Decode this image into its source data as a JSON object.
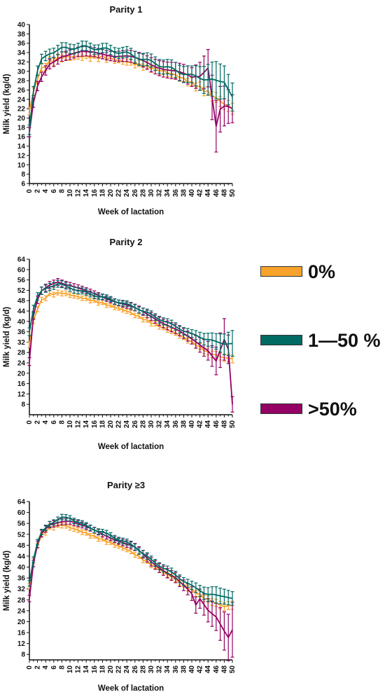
{
  "legend": {
    "items": [
      {
        "label": "0%",
        "color": "#F7A22A"
      },
      {
        "label": "1—50 %",
        "color": "#006B63"
      },
      {
        "label": ">50%",
        "color": "#940064"
      }
    ]
  },
  "chart_data": [
    {
      "type": "line",
      "title": "Parity 1",
      "xlabel": "Week of lactation",
      "ylabel": "Milk yield (kg/d)",
      "xlim": [
        0,
        50
      ],
      "ylim": [
        6,
        40
      ],
      "yticks": [
        6,
        8,
        10,
        12,
        14,
        16,
        18,
        20,
        22,
        24,
        26,
        28,
        30,
        32,
        34,
        36,
        38,
        40
      ],
      "xticks": [
        0,
        2,
        4,
        6,
        8,
        10,
        12,
        14,
        16,
        18,
        20,
        22,
        24,
        26,
        28,
        30,
        32,
        34,
        36,
        38,
        40,
        42,
        44,
        46,
        48,
        50
      ],
      "grid": false,
      "error_bars": true,
      "series": [
        {
          "name": "0%",
          "color": "#F7A22A",
          "anchors": [
            [
              0,
              21.5
            ],
            [
              1,
              25.5
            ],
            [
              2,
              28.5
            ],
            [
              3,
              30.5
            ],
            [
              5,
              32
            ],
            [
              8,
              33
            ],
            [
              12,
              33.2
            ],
            [
              18,
              33
            ],
            [
              24,
              32
            ],
            [
              30,
              30.8
            ],
            [
              36,
              29.2
            ],
            [
              40,
              27.5
            ],
            [
              44,
              25.5
            ],
            [
              48,
              23
            ],
            [
              50,
              22
            ]
          ],
          "err_anchors": [
            [
              0,
              0.8
            ],
            [
              20,
              0.6
            ],
            [
              40,
              0.8
            ],
            [
              50,
              1.2
            ]
          ]
        },
        {
          "name": "1—50 %",
          "color": "#006B63",
          "anchors": [
            [
              0,
              17.5
            ],
            [
              1,
              26
            ],
            [
              2,
              30
            ],
            [
              3,
              32.3
            ],
            [
              5,
              34
            ],
            [
              8,
              34.8
            ],
            [
              13,
              35.2
            ],
            [
              18,
              34.8
            ],
            [
              24,
              33.8
            ],
            [
              30,
              32
            ],
            [
              35,
              30.5
            ],
            [
              40,
              29
            ],
            [
              43,
              28.5
            ],
            [
              46,
              27.8
            ],
            [
              48,
              28
            ],
            [
              50,
              24.5
            ]
          ],
          "err_anchors": [
            [
              0,
              1
            ],
            [
              20,
              1
            ],
            [
              40,
              1.8
            ],
            [
              46,
              4
            ],
            [
              50,
              3
            ]
          ]
        },
        {
          "name": ">50%",
          "color": "#940064",
          "anchors": [
            [
              0,
              17
            ],
            [
              1,
              23
            ],
            [
              2,
              26.5
            ],
            [
              3,
              28.5
            ],
            [
              5,
              31.5
            ],
            [
              8,
              33.5
            ],
            [
              12,
              34
            ],
            [
              18,
              33.8
            ],
            [
              24,
              33.2
            ],
            [
              30,
              31.5
            ],
            [
              36,
              30
            ],
            [
              40,
              28.5
            ],
            [
              42,
              29
            ],
            [
              44,
              31
            ],
            [
              46,
              18.5
            ],
            [
              47,
              22
            ],
            [
              48,
              22.5
            ],
            [
              50,
              22
            ]
          ],
          "err_anchors": [
            [
              0,
              1
            ],
            [
              20,
              1
            ],
            [
              40,
              2
            ],
            [
              44,
              4
            ],
            [
              46,
              5.5
            ],
            [
              50,
              3
            ]
          ]
        }
      ]
    },
    {
      "type": "line",
      "title": "Parity 2",
      "xlabel": "Week of lactation",
      "ylabel": "Milk yield (kg/d)",
      "xlim": [
        0,
        50
      ],
      "ylim": [
        4,
        64
      ],
      "yticks": [
        8,
        12,
        16,
        20,
        24,
        28,
        32,
        36,
        40,
        44,
        48,
        52,
        56,
        60,
        64
      ],
      "xticks": [
        0,
        2,
        4,
        6,
        8,
        10,
        12,
        14,
        16,
        18,
        20,
        22,
        24,
        26,
        28,
        30,
        32,
        34,
        36,
        38,
        40,
        42,
        44,
        46,
        48,
        50
      ],
      "grid": false,
      "error_bars": true,
      "series": [
        {
          "name": "0%",
          "color": "#F7A22A",
          "anchors": [
            [
              0,
              31
            ],
            [
              1,
              40
            ],
            [
              2,
              45
            ],
            [
              3,
              48
            ],
            [
              5,
              50.5
            ],
            [
              8,
              51
            ],
            [
              12,
              49.5
            ],
            [
              18,
              47
            ],
            [
              24,
              44
            ],
            [
              30,
              39.5
            ],
            [
              36,
              35.5
            ],
            [
              40,
              32
            ],
            [
              44,
              28
            ],
            [
              48,
              26
            ],
            [
              50,
              25.5
            ]
          ],
          "err_anchors": [
            [
              0,
              1
            ],
            [
              20,
              0.8
            ],
            [
              40,
              1
            ],
            [
              50,
              1.5
            ]
          ]
        },
        {
          "name": "1—50 %",
          "color": "#006B63",
          "anchors": [
            [
              0,
              36
            ],
            [
              1,
              45
            ],
            [
              2,
              49.5
            ],
            [
              3,
              51.5
            ],
            [
              5,
              53.5
            ],
            [
              7,
              54.5
            ],
            [
              10,
              53
            ],
            [
              14,
              51
            ],
            [
              20,
              48.5
            ],
            [
              26,
              45.5
            ],
            [
              30,
              42.5
            ],
            [
              36,
              38
            ],
            [
              40,
              35
            ],
            [
              44,
              33
            ],
            [
              46,
              32
            ],
            [
              48,
              31.5
            ],
            [
              50,
              31.5
            ]
          ],
          "err_anchors": [
            [
              0,
              1.5
            ],
            [
              20,
              1
            ],
            [
              40,
              1.5
            ],
            [
              46,
              3
            ],
            [
              50,
              5
            ]
          ]
        },
        {
          "name": ">50%",
          "color": "#940064",
          "anchors": [
            [
              0,
              24.5
            ],
            [
              1,
              42
            ],
            [
              2,
              48
            ],
            [
              3,
              51.5
            ],
            [
              5,
              54
            ],
            [
              7,
              55.5
            ],
            [
              10,
              54
            ],
            [
              14,
              51.5
            ],
            [
              20,
              48.5
            ],
            [
              26,
              45
            ],
            [
              30,
              42
            ],
            [
              36,
              37
            ],
            [
              40,
              33
            ],
            [
              44,
              29
            ],
            [
              46,
              25
            ],
            [
              48,
              33
            ],
            [
              49,
              29
            ],
            [
              50,
              8
            ]
          ],
          "err_anchors": [
            [
              0,
              1.5
            ],
            [
              20,
              1
            ],
            [
              40,
              2
            ],
            [
              45,
              4
            ],
            [
              48,
              8
            ],
            [
              50,
              3
            ]
          ]
        }
      ]
    },
    {
      "type": "line",
      "title": "Parity ≥3",
      "xlabel": "Week of lactation",
      "ylabel": "Milk yield (kg/d)",
      "xlim": [
        0,
        50
      ],
      "ylim": [
        6,
        64
      ],
      "yticks": [
        8,
        12,
        16,
        20,
        24,
        28,
        32,
        36,
        40,
        44,
        48,
        52,
        56,
        60,
        64
      ],
      "xticks": [
        0,
        2,
        4,
        6,
        8,
        10,
        12,
        14,
        16,
        18,
        20,
        22,
        24,
        26,
        28,
        30,
        32,
        34,
        36,
        38,
        40,
        42,
        44,
        46,
        48,
        50
      ],
      "grid": false,
      "error_bars": true,
      "series": [
        {
          "name": "0%",
          "color": "#F7A22A",
          "anchors": [
            [
              0,
              33
            ],
            [
              1,
              42
            ],
            [
              2,
              48
            ],
            [
              3,
              51.5
            ],
            [
              5,
              54.5
            ],
            [
              8,
              55.5
            ],
            [
              12,
              53.5
            ],
            [
              18,
              50
            ],
            [
              24,
              46.5
            ],
            [
              30,
              41
            ],
            [
              36,
              35.5
            ],
            [
              40,
              31.5
            ],
            [
              44,
              28
            ],
            [
              48,
              25.5
            ],
            [
              50,
              26
            ]
          ],
          "err_anchors": [
            [
              0,
              1
            ],
            [
              20,
              0.8
            ],
            [
              40,
              1
            ],
            [
              50,
              1.5
            ]
          ]
        },
        {
          "name": "1—50 %",
          "color": "#006B63",
          "anchors": [
            [
              0,
              34
            ],
            [
              1,
              43
            ],
            [
              2,
              49
            ],
            [
              3,
              52.5
            ],
            [
              5,
              56
            ],
            [
              8,
              58
            ],
            [
              10,
              58
            ],
            [
              14,
              55
            ],
            [
              20,
              51.5
            ],
            [
              26,
              47.5
            ],
            [
              30,
              42.5
            ],
            [
              36,
              37
            ],
            [
              40,
              33
            ],
            [
              44,
              30
            ],
            [
              46,
              29.5
            ],
            [
              48,
              29.5
            ],
            [
              50,
              28.5
            ]
          ],
          "err_anchors": [
            [
              0,
              1
            ],
            [
              20,
              1
            ],
            [
              40,
              1.5
            ],
            [
              46,
              3
            ],
            [
              50,
              2.5
            ]
          ]
        },
        {
          "name": ">50%",
          "color": "#940064",
          "anchors": [
            [
              0,
              28.5
            ],
            [
              1,
              41
            ],
            [
              2,
              48
            ],
            [
              3,
              52
            ],
            [
              5,
              55.5
            ],
            [
              8,
              57
            ],
            [
              10,
              57
            ],
            [
              14,
              54.5
            ],
            [
              20,
              51
            ],
            [
              26,
              47
            ],
            [
              30,
              42
            ],
            [
              36,
              36
            ],
            [
              40,
              30
            ],
            [
              41,
              26
            ],
            [
              42,
              28.5
            ],
            [
              44,
              24.5
            ],
            [
              46,
              22
            ],
            [
              48,
              16.5
            ],
            [
              49,
              14
            ],
            [
              50,
              17
            ]
          ],
          "err_anchors": [
            [
              0,
              1.2
            ],
            [
              20,
              1
            ],
            [
              39,
              2
            ],
            [
              42,
              3.5
            ],
            [
              46,
              5
            ],
            [
              48,
              7
            ],
            [
              50,
              10
            ]
          ]
        }
      ]
    }
  ]
}
